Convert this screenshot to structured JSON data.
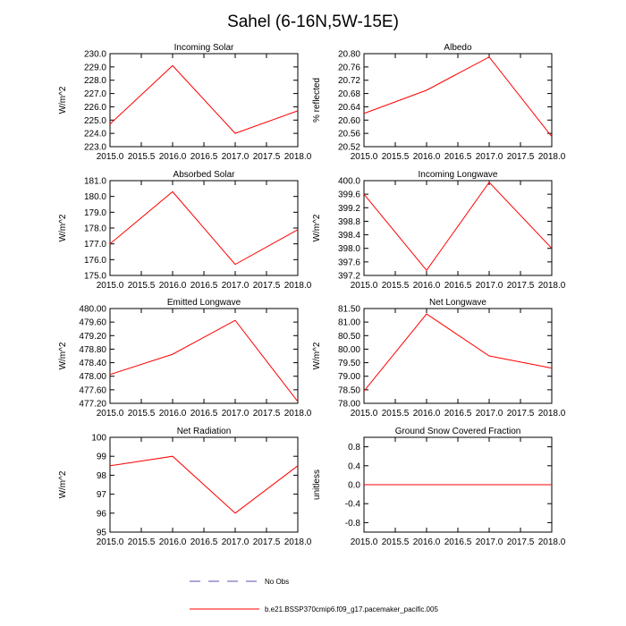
{
  "figure": {
    "title": "Sahel (6-16N,5W-15E)",
    "legend": [
      {
        "label": "No Obs",
        "color": "#5a4fb3",
        "dash": true
      },
      {
        "label": "b.e21.BSSP370cmip6.f09_g17.pacemaker_pacific.005",
        "color": "#ff0000",
        "dash": false
      }
    ]
  },
  "chart_data": [
    {
      "type": "line",
      "title": "Incoming Solar",
      "xlabel": "",
      "ylabel": "W/m^2",
      "x": [
        2015,
        2016,
        2017,
        2018
      ],
      "xticks": [
        2015.0,
        2015.5,
        2016.0,
        2016.5,
        2017.0,
        2017.5,
        2018.0
      ],
      "xlim": [
        2015,
        2018
      ],
      "ylim": [
        223.0,
        230.0
      ],
      "yticks": [
        223.0,
        224.0,
        225.0,
        226.0,
        227.0,
        228.0,
        229.0,
        230.0
      ],
      "ydecimals": 1,
      "series": [
        {
          "name": "b.e21.BSSP370cmip6.f09_g17.pacemaker_pacific.005",
          "color": "#ff0000",
          "values": [
            224.7,
            229.1,
            224.0,
            225.7
          ]
        }
      ]
    },
    {
      "type": "line",
      "title": "Albedo",
      "xlabel": "",
      "ylabel": "% reflected",
      "x": [
        2015,
        2016,
        2017,
        2018
      ],
      "xticks": [
        2015.0,
        2015.5,
        2016.0,
        2016.5,
        2017.0,
        2017.5,
        2018.0
      ],
      "xlim": [
        2015,
        2018
      ],
      "ylim": [
        20.52,
        20.8
      ],
      "yticks": [
        20.52,
        20.56,
        20.6,
        20.64,
        20.68,
        20.72,
        20.76,
        20.8
      ],
      "ydecimals": 2,
      "series": [
        {
          "name": "b.e21.BSSP370cmip6.f09_g17.pacemaker_pacific.005",
          "color": "#ff0000",
          "values": [
            20.62,
            20.69,
            20.79,
            20.55
          ]
        }
      ]
    },
    {
      "type": "line",
      "title": "Absorbed Solar",
      "xlabel": "",
      "ylabel": "W/m^2",
      "x": [
        2015,
        2016,
        2017,
        2018
      ],
      "xticks": [
        2015.0,
        2015.5,
        2016.0,
        2016.5,
        2017.0,
        2017.5,
        2018.0
      ],
      "xlim": [
        2015,
        2018
      ],
      "ylim": [
        175.0,
        181.0
      ],
      "yticks": [
        175.0,
        176.0,
        177.0,
        178.0,
        179.0,
        180.0,
        181.0
      ],
      "ydecimals": 1,
      "series": [
        {
          "name": "b.e21.BSSP370cmip6.f09_g17.pacemaker_pacific.005",
          "color": "#ff0000",
          "values": [
            177.0,
            180.3,
            175.7,
            177.9
          ]
        }
      ]
    },
    {
      "type": "line",
      "title": "Incoming Longwave",
      "xlabel": "",
      "ylabel": "W/m^2",
      "x": [
        2015,
        2016,
        2017,
        2018
      ],
      "xticks": [
        2015.0,
        2015.5,
        2016.0,
        2016.5,
        2017.0,
        2017.5,
        2018.0
      ],
      "xlim": [
        2015,
        2018
      ],
      "ylim": [
        397.2,
        400.0
      ],
      "yticks": [
        397.2,
        397.6,
        398.0,
        398.4,
        398.8,
        399.2,
        399.6,
        400.0
      ],
      "ydecimals": 1,
      "series": [
        {
          "name": "b.e21.BSSP370cmip6.f09_g17.pacemaker_pacific.005",
          "color": "#ff0000",
          "values": [
            399.6,
            397.35,
            399.95,
            398.0
          ]
        }
      ]
    },
    {
      "type": "line",
      "title": "Emitted Longwave",
      "xlabel": "",
      "ylabel": "W/m^2",
      "x": [
        2015,
        2016,
        2017,
        2018
      ],
      "xticks": [
        2015.0,
        2015.5,
        2016.0,
        2016.5,
        2017.0,
        2017.5,
        2018.0
      ],
      "xlim": [
        2015,
        2018
      ],
      "ylim": [
        477.2,
        480.0
      ],
      "yticks": [
        477.2,
        477.6,
        478.0,
        478.4,
        478.8,
        479.2,
        479.6,
        480.0
      ],
      "ydecimals": 2,
      "series": [
        {
          "name": "b.e21.BSSP370cmip6.f09_g17.pacemaker_pacific.005",
          "color": "#ff0000",
          "values": [
            478.05,
            478.65,
            479.65,
            477.25
          ]
        }
      ]
    },
    {
      "type": "line",
      "title": "Net Longwave",
      "xlabel": "",
      "ylabel": "W/m^2",
      "x": [
        2015,
        2016,
        2017,
        2018
      ],
      "xticks": [
        2015.0,
        2015.5,
        2016.0,
        2016.5,
        2017.0,
        2017.5,
        2018.0
      ],
      "xlim": [
        2015,
        2018
      ],
      "ylim": [
        78.0,
        81.5
      ],
      "yticks": [
        78.0,
        78.5,
        79.0,
        79.5,
        80.0,
        80.5,
        81.0,
        81.5
      ],
      "ydecimals": 2,
      "series": [
        {
          "name": "b.e21.BSSP370cmip6.f09_g17.pacemaker_pacific.005",
          "color": "#ff0000",
          "values": [
            78.45,
            81.3,
            79.75,
            79.3
          ]
        }
      ]
    },
    {
      "type": "line",
      "title": "Net Radiation",
      "xlabel": "",
      "ylabel": "W/m^2",
      "x": [
        2015,
        2016,
        2017,
        2018
      ],
      "xticks": [
        2015.0,
        2015.5,
        2016.0,
        2016.5,
        2017.0,
        2017.5,
        2018.0
      ],
      "xlim": [
        2015,
        2018
      ],
      "ylim": [
        95,
        100
      ],
      "yticks": [
        95,
        96,
        97,
        98,
        99,
        100
      ],
      "ydecimals": 0,
      "series": [
        {
          "name": "b.e21.BSSP370cmip6.f09_g17.pacemaker_pacific.005",
          "color": "#ff0000",
          "values": [
            98.5,
            99.0,
            96.0,
            98.5
          ]
        }
      ]
    },
    {
      "type": "line",
      "title": "Ground Snow Covered Fraction",
      "xlabel": "",
      "ylabel": "unitless",
      "x": [
        2015,
        2016,
        2017,
        2018
      ],
      "xticks": [
        2015.0,
        2015.5,
        2016.0,
        2016.5,
        2017.0,
        2017.5,
        2018.0
      ],
      "xlim": [
        2015,
        2018
      ],
      "ylim": [
        -1.0,
        1.0
      ],
      "yticks": [
        -0.8,
        -0.4,
        0.0,
        0.4,
        0.8
      ],
      "ydecimals": 1,
      "series": [
        {
          "name": "b.e21.BSSP370cmip6.f09_g17.pacemaker_pacific.005",
          "color": "#ff0000",
          "values": [
            0.0,
            0.0,
            0.0,
            0.0
          ]
        }
      ]
    }
  ]
}
